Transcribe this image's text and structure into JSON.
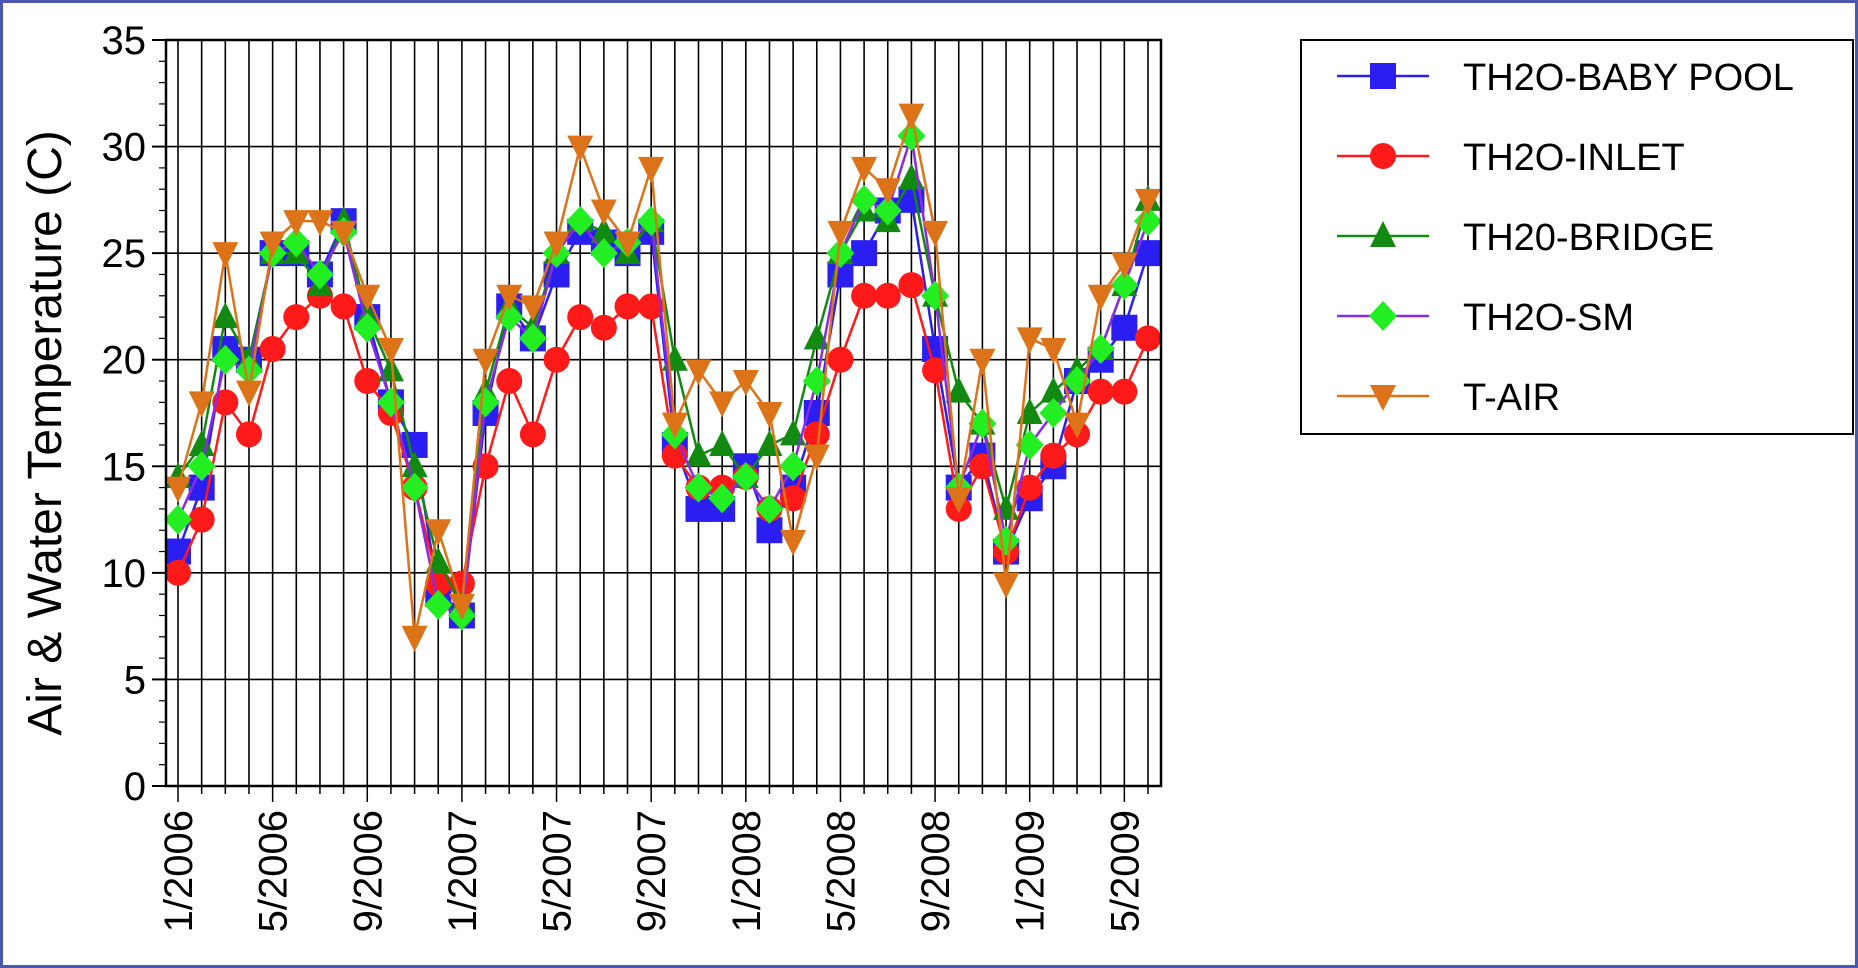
{
  "chart_data": {
    "type": "line",
    "ylabel": "Air & Water Temperature (C)",
    "xlabel": "",
    "ylim": [
      0,
      35
    ],
    "yticks": [
      0,
      5,
      10,
      15,
      20,
      25,
      30,
      35
    ],
    "x": [
      "1/2006",
      "2/2006",
      "3/2006",
      "4/2006",
      "5/2006",
      "6/2006",
      "7/2006",
      "8/2006",
      "9/2006",
      "10/2006",
      "11/2006",
      "12/2006",
      "1/2007",
      "2/2007",
      "3/2007",
      "4/2007",
      "5/2007",
      "6/2007",
      "7/2007",
      "8/2007",
      "9/2007",
      "10/2007",
      "11/2007",
      "12/2007",
      "1/2008",
      "2/2008",
      "3/2008",
      "4/2008",
      "5/2008",
      "6/2008",
      "7/2008",
      "8/2008",
      "9/2008",
      "10/2008",
      "11/2008",
      "12/2008",
      "1/2009",
      "2/2009",
      "3/2009",
      "4/2009",
      "5/2009",
      "6/2009"
    ],
    "x_tick_labels": [
      "1/2006",
      "5/2006",
      "9/2006",
      "1/2007",
      "5/2007",
      "9/2007",
      "1/2008",
      "5/2008",
      "9/2008",
      "1/2009",
      "5/2009"
    ],
    "grid": true,
    "legend_position": "right",
    "series": [
      {
        "name": "TH2O-BABY POOL",
        "color": "#2a1ef0",
        "marker": "square",
        "values": [
          11,
          14,
          20.5,
          20,
          25,
          25,
          24,
          26.5,
          22,
          18,
          16,
          9,
          8,
          17.5,
          22.5,
          21,
          24,
          26,
          25.5,
          25,
          26,
          16,
          13,
          13,
          15,
          12,
          14,
          17.5,
          24,
          25,
          27,
          27.5,
          20.5,
          14,
          15.5,
          11,
          13.5,
          15,
          19,
          20,
          21.5,
          25
        ]
      },
      {
        "name": "TH2O-INLET",
        "color": "#ff1a1a",
        "marker": "circle",
        "values": [
          10,
          12.5,
          18,
          16.5,
          20.5,
          22,
          23,
          22.5,
          19,
          17.5,
          14,
          9.5,
          9.5,
          15,
          19,
          16.5,
          20,
          22,
          21.5,
          22.5,
          22.5,
          15.5,
          14,
          14,
          14.5,
          13,
          13.5,
          16.5,
          20,
          23,
          23,
          23.5,
          19.5,
          13,
          15,
          11,
          14,
          15.5,
          16.5,
          18.5,
          18.5,
          21
        ]
      },
      {
        "name": "TH20-BRIDGE",
        "color": "#128a12",
        "marker": "triangle-up",
        "values": [
          14.5,
          16,
          22,
          20,
          25,
          25,
          23.5,
          26.5,
          22,
          19.5,
          15,
          10.5,
          8.5,
          18.5,
          22.5,
          21.5,
          25,
          26.5,
          26,
          25,
          26.5,
          20,
          15.5,
          16,
          14.5,
          16,
          16.5,
          21,
          25,
          27,
          26.5,
          28.5,
          23,
          18.5,
          17,
          13,
          17.5,
          18.5,
          19.5,
          20.5,
          23.5,
          27.5
        ]
      },
      {
        "name": "TH2O-SM",
        "color": "#8a2be2",
        "marker": "diamond",
        "marker_color": "#22ee22",
        "values": [
          12.5,
          15,
          20,
          19.5,
          25,
          25.5,
          24,
          26,
          21.5,
          18,
          14,
          8.5,
          8,
          18,
          22,
          21,
          25,
          26.5,
          25,
          25.5,
          26.5,
          16.5,
          14,
          13.5,
          14.5,
          13,
          15,
          19,
          25,
          27.5,
          27,
          30.5,
          23,
          14,
          17,
          11.5,
          16,
          17.5,
          19,
          20.5,
          23.5,
          26.5
        ]
      },
      {
        "name": "T-AIR",
        "color": "#dd7318",
        "marker": "triangle-down",
        "values": [
          14,
          18,
          25,
          18.5,
          25.5,
          26.5,
          26.5,
          26,
          23,
          20.5,
          7,
          12,
          8.5,
          20,
          23,
          22.5,
          25.5,
          30,
          27,
          25.5,
          29,
          17,
          19.5,
          18,
          19,
          17.5,
          11.5,
          15.5,
          26,
          29,
          28,
          31.5,
          26,
          13.5,
          20,
          9.5,
          21,
          20.5,
          17,
          23,
          24.5,
          27.5
        ]
      }
    ]
  }
}
